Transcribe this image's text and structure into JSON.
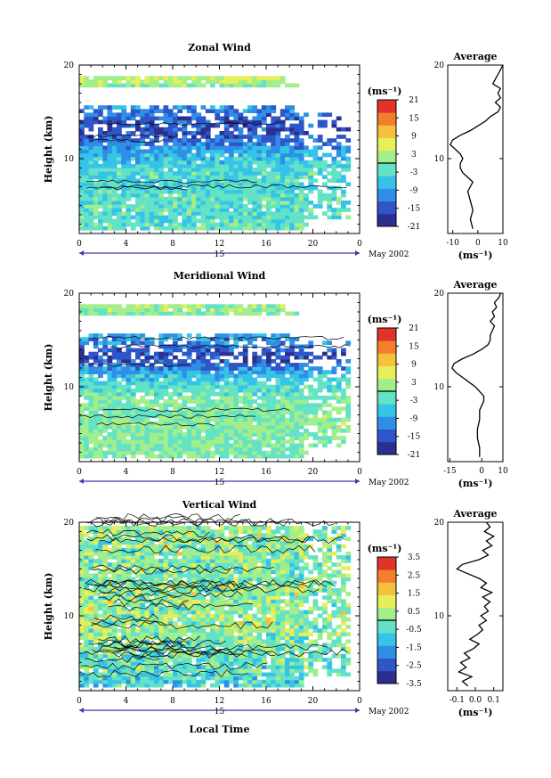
{
  "figure": {
    "bottom_axis_label": "Local Time"
  },
  "panels": [
    {
      "title": "Zonal Wind",
      "ylabel": "Height (km)",
      "y_ticks": [
        "20",
        "10"
      ],
      "x_ticks": [
        "0",
        "4",
        "8",
        "12",
        "16",
        "20",
        "0"
      ],
      "day_label": "15",
      "date_label": "May 2002",
      "colorbar_unit": "(ms⁻¹)",
      "colorbar_ticks": [
        "21",
        "15",
        "9",
        "3",
        "-3",
        "-9",
        "-15",
        "-21"
      ],
      "avg_title": "Average",
      "avg_y_ticks": [
        "20",
        "10"
      ],
      "avg_x_ticks": [
        "-10",
        "0",
        "10"
      ],
      "avg_unit": "(ms⁻¹)"
    },
    {
      "title": "Meridional Wind",
      "ylabel": "Height (km)",
      "y_ticks": [
        "20",
        "10"
      ],
      "x_ticks": [
        "0",
        "4",
        "8",
        "12",
        "16",
        "20",
        "0"
      ],
      "day_label": "15",
      "date_label": "May 2002",
      "colorbar_unit": "(ms⁻¹)",
      "colorbar_ticks": [
        "21",
        "15",
        "9",
        "3",
        "-3",
        "-9",
        "-15",
        "-21"
      ],
      "avg_title": "Average",
      "avg_y_ticks": [
        "20",
        "10"
      ],
      "avg_x_ticks": [
        "-15",
        "0",
        "10"
      ],
      "avg_unit": "(ms⁻¹)"
    },
    {
      "title": "Vertical Wind",
      "ylabel": "Height (km)",
      "y_ticks": [
        "20",
        "10"
      ],
      "x_ticks": [
        "0",
        "4",
        "8",
        "12",
        "16",
        "20",
        "0"
      ],
      "day_label": "15",
      "date_label": "May 2002",
      "colorbar_unit": "(ms⁻¹)",
      "colorbar_ticks": [
        "3.5",
        "2.5",
        "1.5",
        "0.5",
        "-0.5",
        "-1.5",
        "-2.5",
        "-3.5"
      ],
      "avg_title": "Average",
      "avg_y_ticks": [
        "20",
        "10"
      ],
      "avg_x_ticks": [
        "-0.1",
        "0.0",
        "0.1"
      ],
      "avg_unit": "(ms⁻¹)"
    }
  ],
  "chart_data": [
    {
      "type": "heatmap",
      "title": "Zonal Wind",
      "xlabel": "Local Time",
      "ylabel": "Height (km)",
      "xlim": [
        0,
        24
      ],
      "ylim": [
        2,
        20
      ],
      "color_range": [
        -21,
        21
      ],
      "colormap": [
        "#2b2f8f",
        "#2f55c8",
        "#2f8ee6",
        "#35c3e8",
        "#63e2c6",
        "#a2ee8a",
        "#e6ef5a",
        "#f6c03a",
        "#f47e2c",
        "#e2332a"
      ],
      "profile_height_km": [
        18.5,
        17,
        15.5,
        14.5,
        13,
        12,
        11,
        10,
        9,
        8,
        7,
        6,
        5,
        4,
        3
      ],
      "profile_value": [
        4,
        -3,
        -10,
        -14,
        -16,
        -13,
        -9,
        -6,
        -4,
        -3,
        -4,
        -3,
        -2,
        -3,
        -2
      ],
      "average_profile": {
        "xlim": [
          -12,
          10
        ],
        "height_km": [
          2.5,
          3.5,
          4.5,
          5.5,
          6.5,
          7,
          7.5,
          8,
          8.5,
          9,
          9.5,
          10,
          10.5,
          11,
          11.5,
          12,
          12.5,
          13,
          13.5,
          14,
          14.5,
          15,
          15.5,
          16,
          16.5,
          17,
          17.5,
          18,
          18.5,
          19,
          19.5,
          20
        ],
        "value": [
          -2,
          -3,
          -2,
          -3,
          -4,
          -3,
          -2,
          -4,
          -6,
          -7,
          -7,
          -6,
          -7,
          -9,
          -11,
          -10,
          -7,
          -3,
          0,
          3,
          5,
          8,
          9,
          7,
          9,
          8,
          9,
          6,
          7,
          8,
          9,
          10
        ]
      }
    },
    {
      "type": "heatmap",
      "title": "Meridional Wind",
      "xlabel": "Local Time",
      "ylabel": "Height (km)",
      "xlim": [
        0,
        24
      ],
      "ylim": [
        2,
        20
      ],
      "color_range": [
        -21,
        21
      ],
      "colormap": [
        "#2b2f8f",
        "#2f55c8",
        "#2f8ee6",
        "#35c3e8",
        "#63e2c6",
        "#a2ee8a",
        "#e6ef5a",
        "#f6c03a",
        "#f47e2c",
        "#e2332a"
      ],
      "profile_height_km": [
        18.5,
        16.5,
        15.5,
        14.5,
        13.5,
        12.5,
        11.5,
        10.5,
        9.5,
        8.5,
        7.5,
        6.5,
        5,
        3.5
      ],
      "profile_value": [
        2,
        -2,
        -8,
        -12,
        -16,
        -14,
        -8,
        -4,
        -2,
        0,
        0,
        1,
        0,
        0
      ],
      "average_profile": {
        "xlim": [
          -16,
          10
        ],
        "height_km": [
          2.5,
          3.5,
          4.5,
          5.5,
          6.5,
          7.5,
          8.5,
          9,
          9.5,
          10,
          10.5,
          11,
          11.5,
          12,
          12.5,
          13,
          13.5,
          14,
          14.5,
          15,
          15.5,
          16,
          16.5,
          17,
          17.5,
          18,
          18.5,
          19,
          19.5,
          20
        ],
        "value": [
          -1,
          -1,
          -2,
          -2,
          -1,
          -1,
          1,
          1,
          -1,
          -3,
          -6,
          -9,
          -12,
          -14,
          -13,
          -9,
          -4,
          0,
          3,
          4,
          4,
          5,
          6,
          4,
          6,
          5,
          7,
          6,
          8,
          9
        ]
      }
    },
    {
      "type": "heatmap",
      "title": "Vertical Wind",
      "xlabel": "Local Time",
      "ylabel": "Height (km)",
      "xlim": [
        0,
        24
      ],
      "ylim": [
        2,
        20
      ],
      "color_range": [
        -3.5,
        3.5
      ],
      "colormap": [
        "#2b2f8f",
        "#2f55c8",
        "#2f8ee6",
        "#35c3e8",
        "#63e2c6",
        "#a2ee8a",
        "#e6ef5a",
        "#f6c03a",
        "#f47e2c",
        "#e2332a"
      ],
      "profile_height_km": [
        18,
        16,
        14,
        12,
        10,
        8,
        6,
        4,
        3
      ],
      "profile_value": [
        0.2,
        0.1,
        0,
        0.2,
        0.3,
        0.1,
        -0.2,
        -0.4,
        -0.6
      ],
      "average_profile": {
        "xlim": [
          -0.15,
          0.15
        ],
        "height_km": [
          2.5,
          3,
          3.5,
          4,
          4.5,
          5,
          5.5,
          6,
          6.5,
          7,
          7.5,
          8,
          8.5,
          9,
          9.5,
          10,
          10.5,
          11,
          11.5,
          12,
          12.5,
          13,
          13.5,
          14,
          14.5,
          15,
          15.5,
          16,
          16.5,
          17,
          17.5,
          18,
          18.5,
          19,
          19.5,
          20
        ],
        "value": [
          -0.04,
          -0.07,
          -0.02,
          -0.09,
          -0.05,
          -0.08,
          -0.03,
          -0.06,
          -0.01,
          0.02,
          -0.03,
          0.01,
          0.04,
          0.02,
          0.06,
          0.03,
          0.07,
          0.05,
          0.08,
          0.04,
          0.09,
          0.03,
          0.06,
          0.02,
          -0.04,
          -0.1,
          -0.07,
          0.02,
          0.07,
          0.04,
          0.09,
          0.06,
          0.1,
          0.05,
          0.08,
          0.06
        ]
      }
    }
  ]
}
